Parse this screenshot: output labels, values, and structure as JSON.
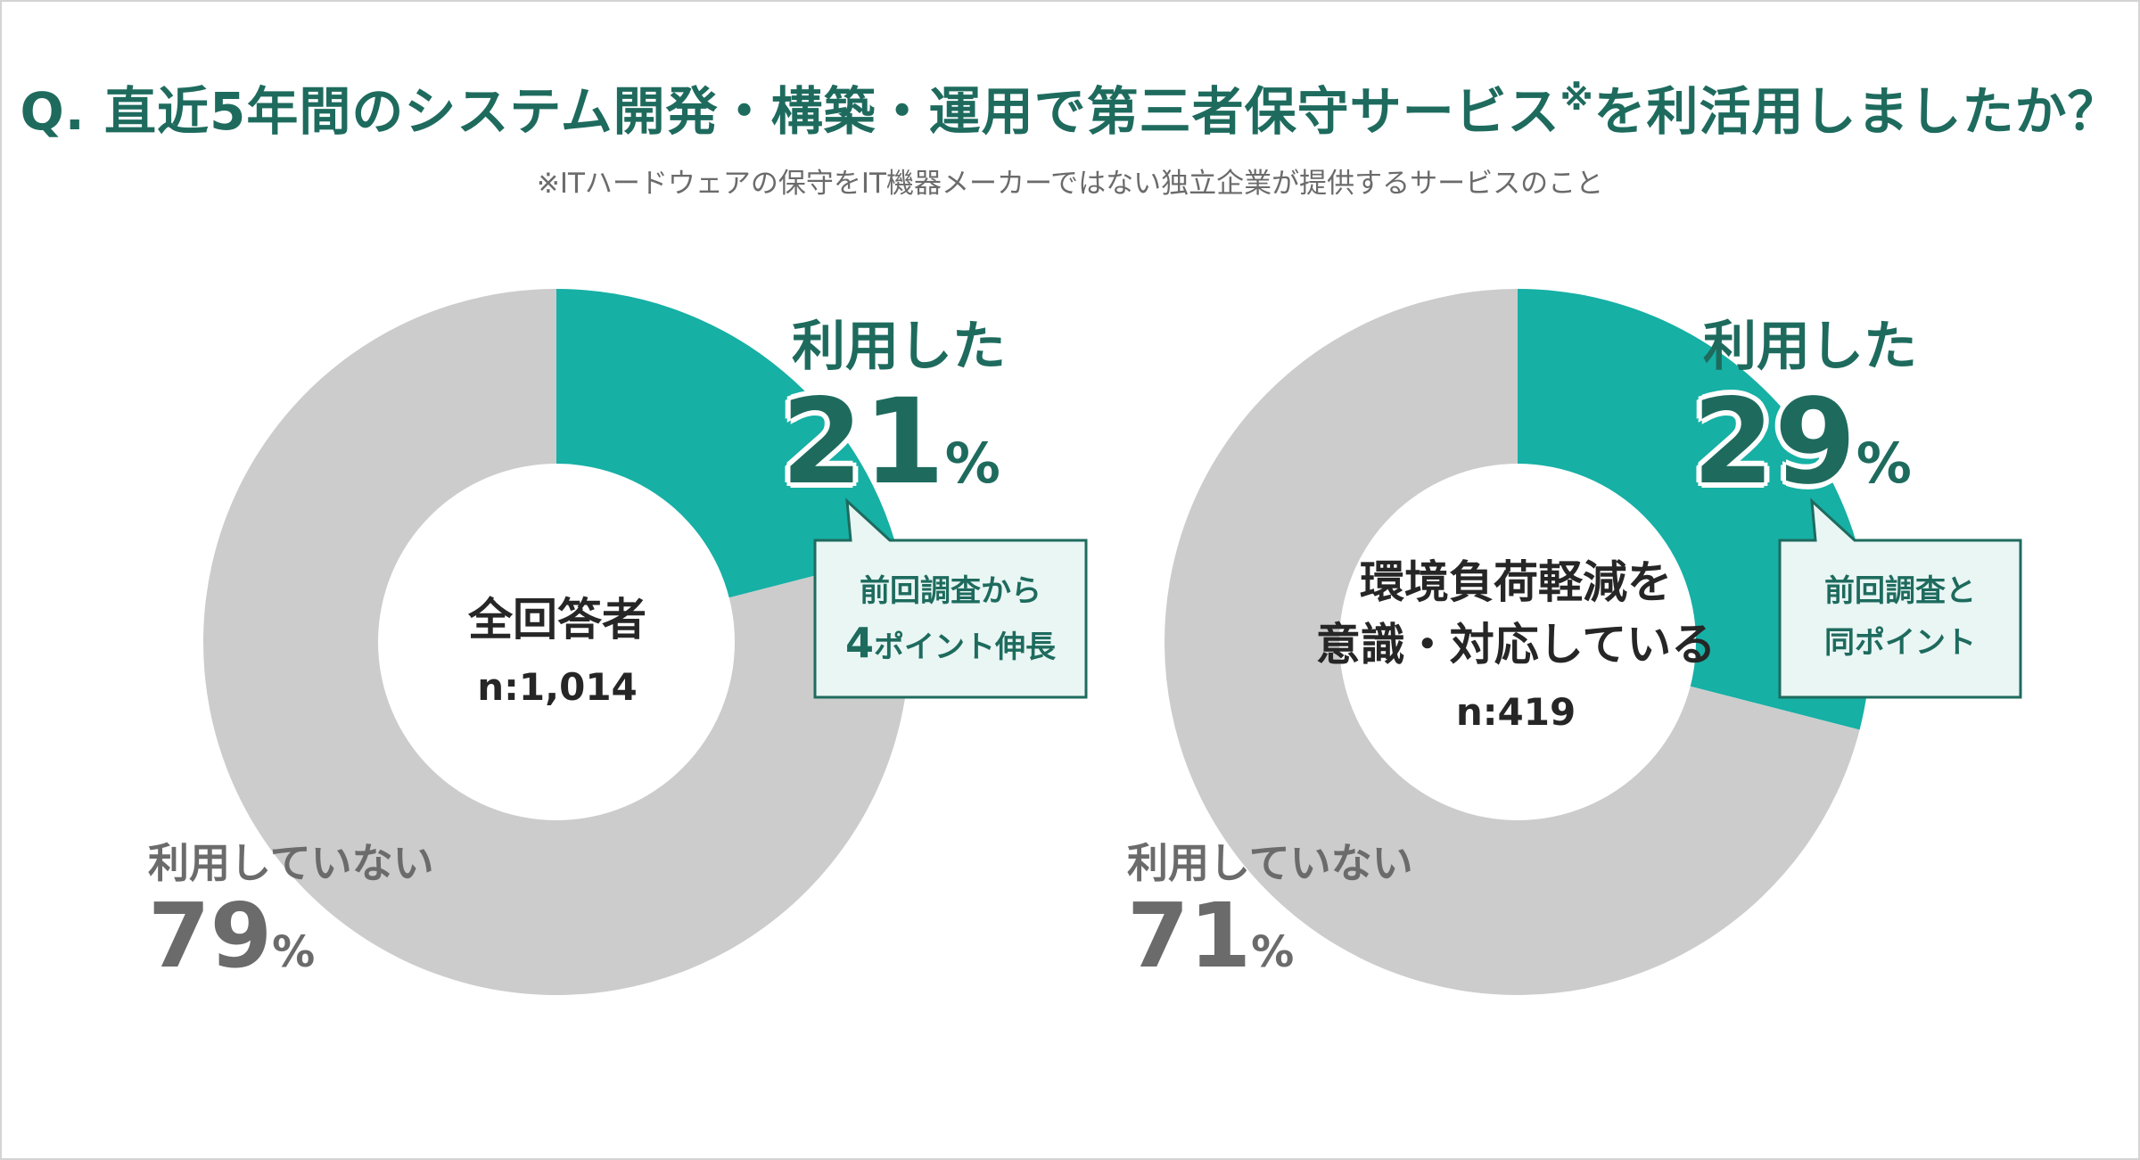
{
  "title": {
    "text": "Q. 直近5年間のシステム開発・構築・運用で第三者保守サービス",
    "mark": "※",
    "suffix": "を利活用しましたか？"
  },
  "subtitle": "※ITハードウェアの保守をIT機器メーカーではない独立企業が提供するサービスのこと",
  "colors": {
    "used": "#16b0a5",
    "not_used": "#cccccc",
    "accent": "#1e6b5e",
    "callout_bg": "#e9f6f4"
  },
  "chart_data": [
    {
      "type": "pie",
      "center_label": "全回答者",
      "n_label": "n:1,014",
      "categories": [
        "利用した",
        "利用していない"
      ],
      "values": [
        21,
        79
      ],
      "unit": "%",
      "callout": [
        "前回調査から",
        "4",
        "ポイント伸長"
      ]
    },
    {
      "type": "pie",
      "center_label": [
        "環境負荷軽減を",
        "意識・対応している"
      ],
      "n_label": "n:419",
      "categories": [
        "利用した",
        "利用していない"
      ],
      "values": [
        29,
        71
      ],
      "unit": "%",
      "callout": [
        "前回調査と",
        "同ポイント"
      ]
    }
  ]
}
